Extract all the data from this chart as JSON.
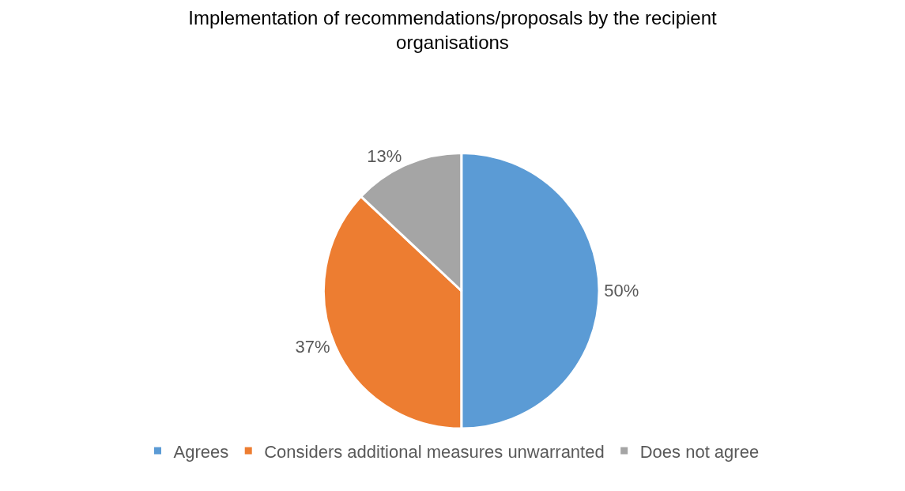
{
  "chart_data": {
    "type": "pie",
    "title": "Implementation of recommendations/proposals by the recipient organisations",
    "categories": [
      "Agrees",
      "Considers additional measures unwarranted",
      "Does not agree"
    ],
    "values": [
      50,
      37,
      13
    ],
    "value_labels": [
      "50%",
      "37%",
      "13%"
    ],
    "colors": [
      "#5b9bd5",
      "#ed7d31",
      "#a5a5a5"
    ],
    "legend": "bottom"
  }
}
